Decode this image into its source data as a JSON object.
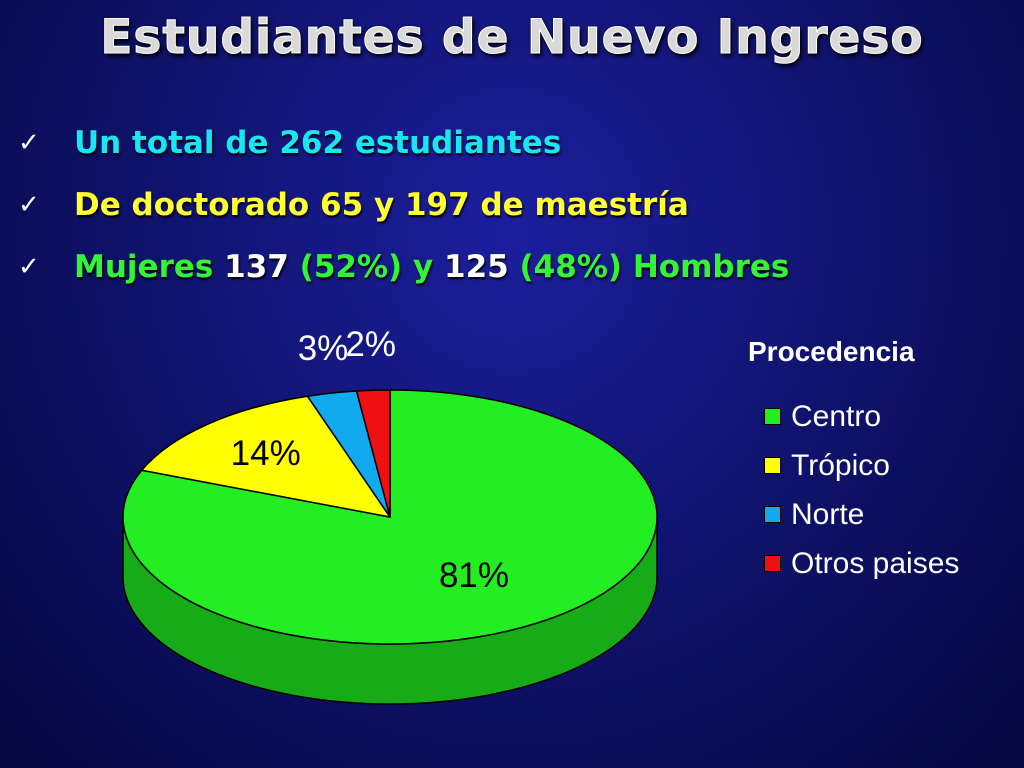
{
  "title": "Estudiantes de Nuevo Ingreso",
  "bullets": [
    {
      "parts": [
        {
          "text": "Un total de 262 estudiantes",
          "color": "cyan"
        }
      ]
    },
    {
      "parts": [
        {
          "text": "De doctorado 65 y 197 de maestría",
          "color": "yellow"
        }
      ]
    },
    {
      "parts": [
        {
          "text": "Mujeres ",
          "color": "green"
        },
        {
          "text": "137 ",
          "color": "white"
        },
        {
          "text": "(52%) y ",
          "color": "green"
        },
        {
          "text": "125 ",
          "color": "white"
        },
        {
          "text": "(48%) Hombres",
          "color": "green"
        }
      ]
    }
  ],
  "check_glyph": "✓",
  "chart_data": {
    "type": "pie",
    "style": "3d",
    "title": "Procedencia",
    "legend_placement": "right",
    "categories": [
      "Centro",
      "Trópico",
      "Norte",
      "Otros paises"
    ],
    "values": [
      81,
      14,
      3,
      2
    ],
    "labels": [
      "81%",
      "14%",
      "3%",
      "2%"
    ],
    "colors": [
      "#22ee22",
      "#ffff00",
      "#11aaee",
      "#ee1111"
    ]
  }
}
